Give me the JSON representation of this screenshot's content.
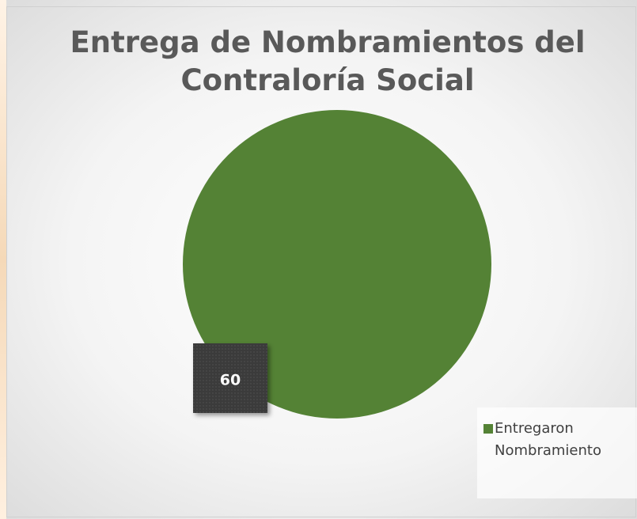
{
  "chart_data": {
    "type": "pie",
    "title": "Entrega de Nombramientos del Contraloría Social",
    "categories": [
      "Entregaron Nombramiento"
    ],
    "values": [
      60
    ],
    "colors": [
      "#548235"
    ],
    "legend": "bottom-right"
  }
}
